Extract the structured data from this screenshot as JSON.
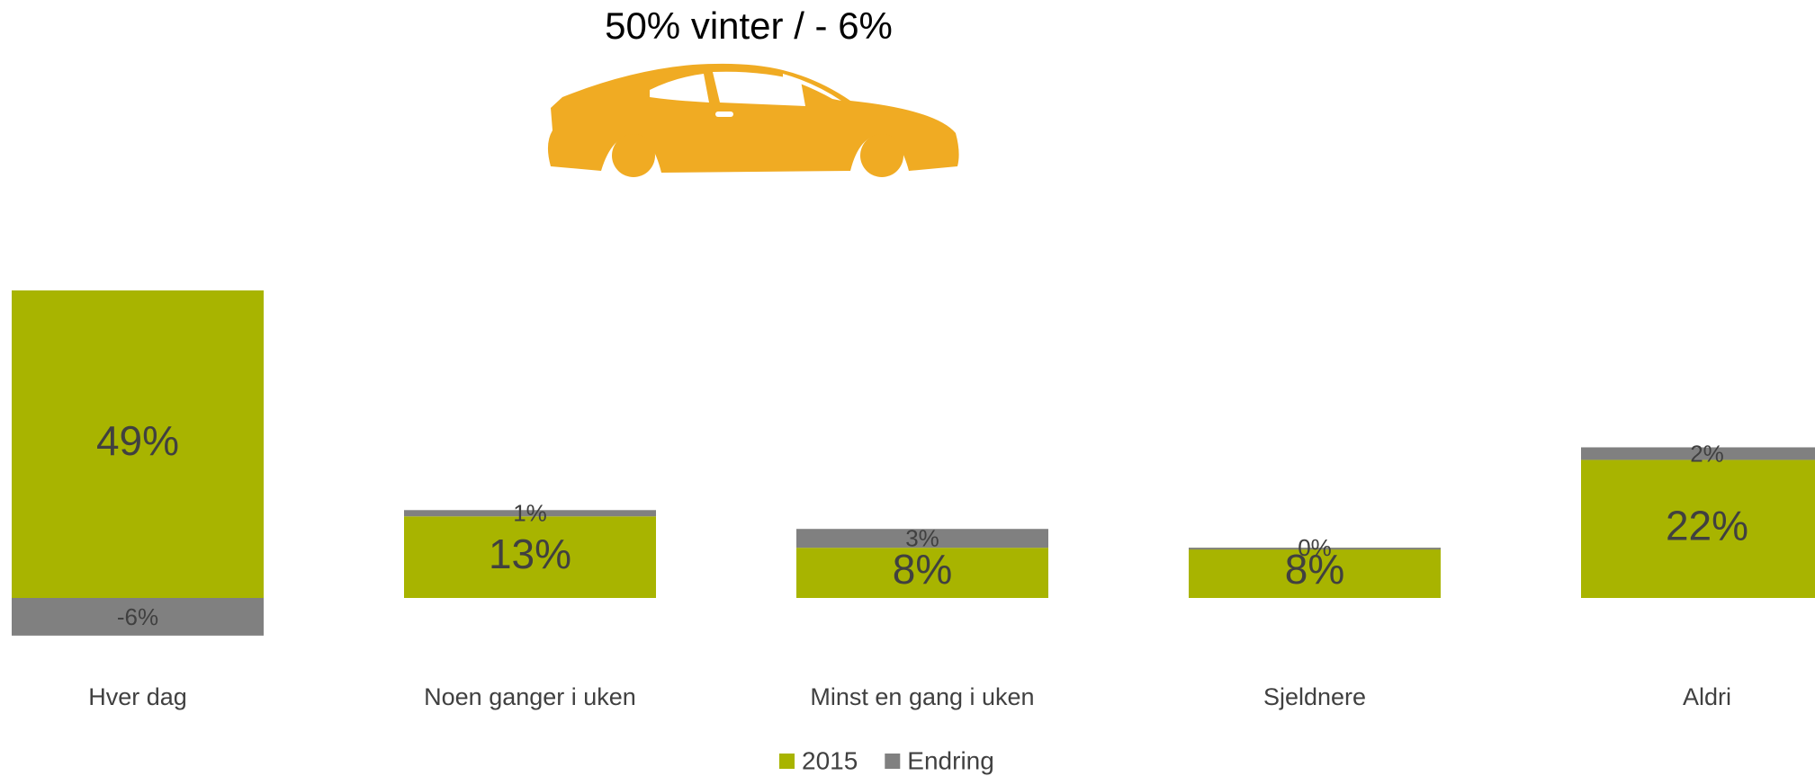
{
  "chart_data": {
    "type": "bar",
    "stacked": true,
    "title": "50% vinter / - 6%",
    "categories": [
      "Hver dag",
      "Noen ganger i uken",
      "Minst en gang i uken",
      "Sjeldnere",
      "Aldri"
    ],
    "series": [
      {
        "name": "2015",
        "color": "#a8b400",
        "values": [
          49,
          13,
          8,
          8,
          22
        ],
        "value_labels": [
          "49%",
          "13%",
          "8%",
          "8%",
          "22%"
        ]
      },
      {
        "name": "Endring",
        "color": "#808080",
        "values": [
          -6,
          1,
          3,
          0,
          2
        ],
        "value_labels": [
          "-6%",
          "1%",
          "3%",
          "0%",
          "2%"
        ]
      }
    ],
    "legend": "bottom"
  }
}
